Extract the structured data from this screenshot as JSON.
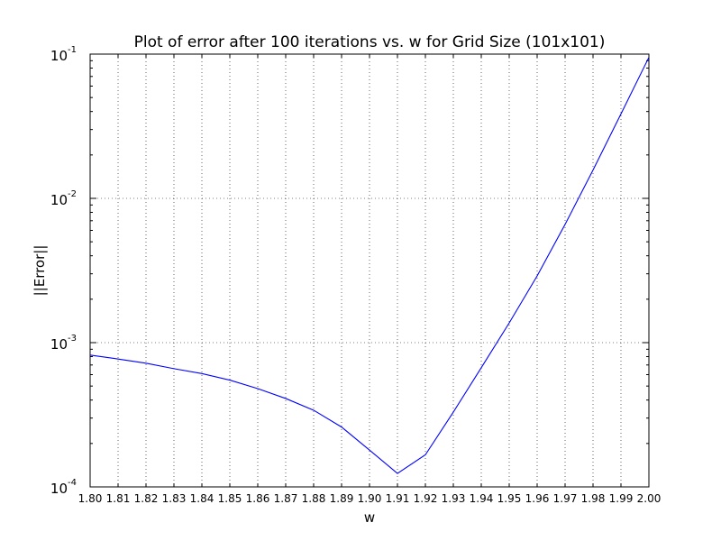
{
  "chart_data": {
    "type": "line",
    "title": "Plot of error after 100 iterations vs. w for Grid Size (101x101)",
    "xlabel": "w",
    "ylabel": "||Error||",
    "xlim": [
      1.8,
      2.0
    ],
    "ylim": [
      0.0001,
      0.1
    ],
    "yscale": "log",
    "grid": true,
    "line_color": "#0000ff",
    "x_ticks": [
      1.8,
      1.81,
      1.82,
      1.83,
      1.84,
      1.85,
      1.86,
      1.87,
      1.88,
      1.89,
      1.9,
      1.91,
      1.92,
      1.93,
      1.94,
      1.95,
      1.96,
      1.97,
      1.98,
      1.99,
      2.0
    ],
    "x_tick_labels": [
      "1.80",
      "1.81",
      "1.82",
      "1.83",
      "1.84",
      "1.85",
      "1.86",
      "1.87",
      "1.88",
      "1.89",
      "1.90",
      "1.91",
      "1.92",
      "1.93",
      "1.94",
      "1.95",
      "1.96",
      "1.97",
      "1.98",
      "1.99",
      "2.00"
    ],
    "y_ticks": [
      {
        "value": 0.0001,
        "base": "10",
        "exp": "-4"
      },
      {
        "value": 0.001,
        "base": "10",
        "exp": "-3"
      },
      {
        "value": 0.01,
        "base": "10",
        "exp": "-2"
      },
      {
        "value": 0.1,
        "base": "10",
        "exp": "-1"
      }
    ],
    "series": [
      {
        "x": [
          1.8,
          1.81,
          1.82,
          1.83,
          1.84,
          1.85,
          1.86,
          1.87,
          1.88,
          1.89,
          1.9,
          1.91,
          1.92,
          1.93,
          1.94,
          1.95,
          1.96,
          1.97,
          1.98,
          1.99,
          2.0
        ],
        "y": [
          0.00082,
          0.00077,
          0.00072,
          0.00066,
          0.00061,
          0.00055,
          0.00048,
          0.00041,
          0.00034,
          0.00026,
          0.00018,
          0.000124,
          0.000167,
          0.00033,
          0.00067,
          0.00137,
          0.0029,
          0.0066,
          0.0157,
          0.0385,
          0.095
        ]
      }
    ]
  }
}
